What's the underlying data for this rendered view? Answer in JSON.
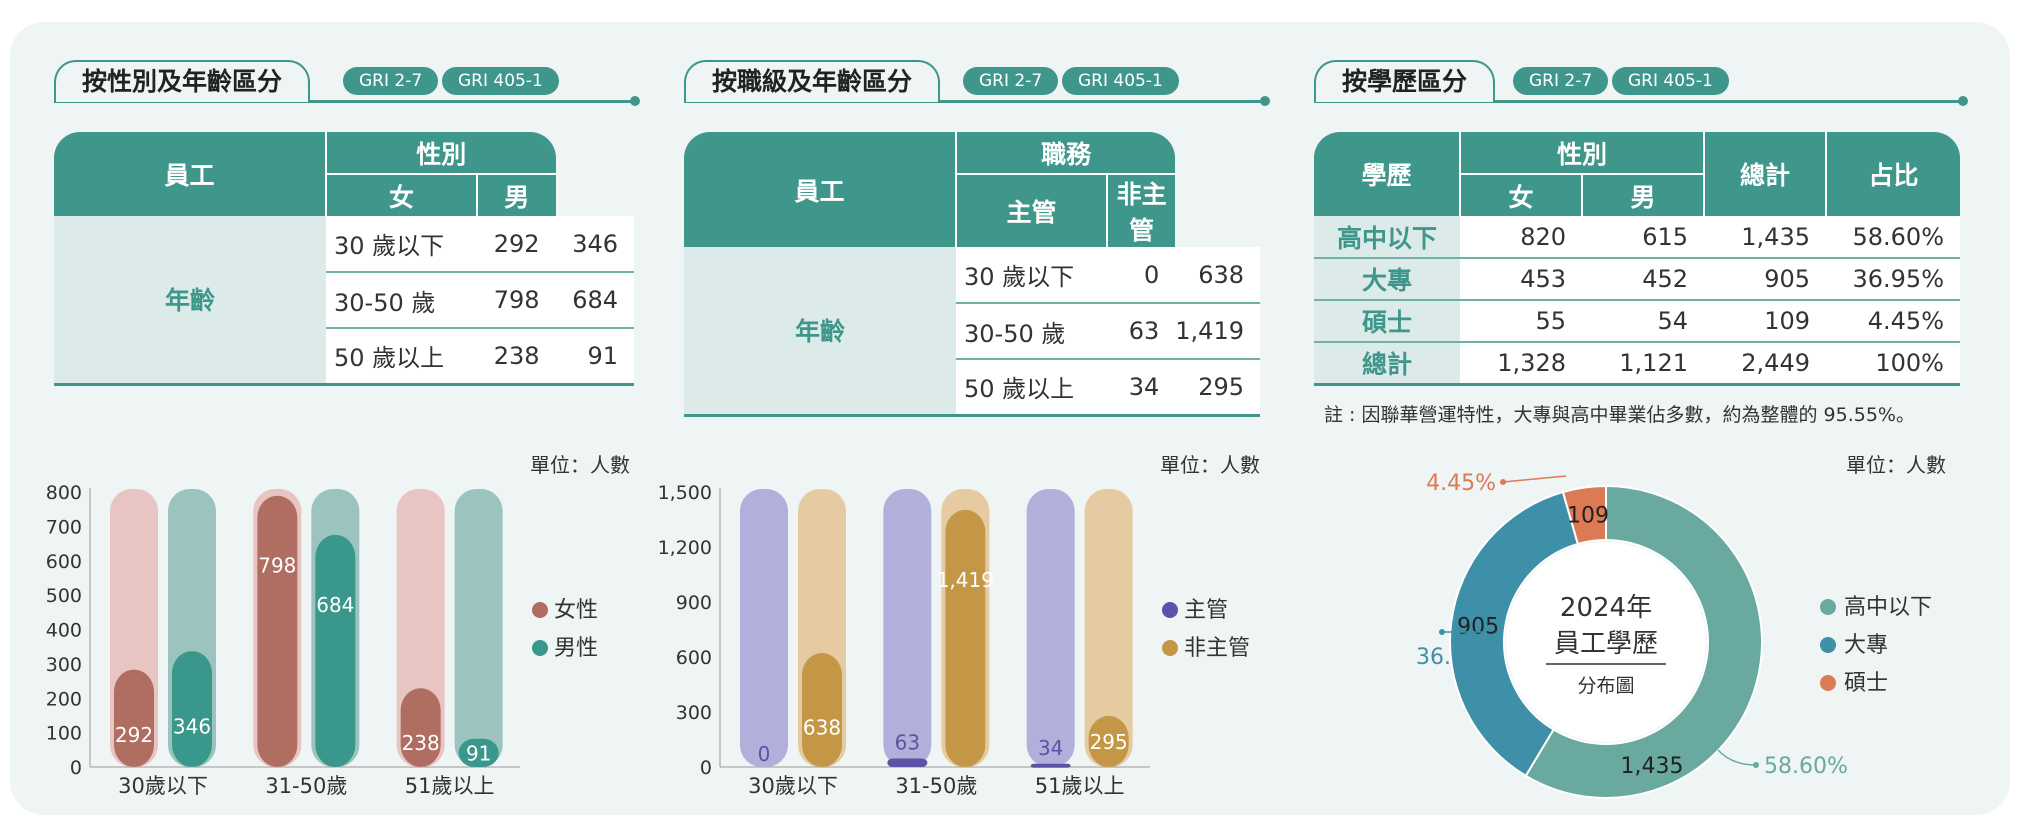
{
  "panels": {
    "p1": {
      "title": "按性別及年齡區分",
      "badges": [
        "GRI 2-7",
        "GRI 405-1"
      ],
      "table": {
        "corner": "員工",
        "group_header": "性別",
        "col_headers": [
          "女",
          "男"
        ],
        "row_group": "年齡",
        "rows": [
          {
            "label": "30 歲以下",
            "values": [
              "292",
              "346"
            ]
          },
          {
            "label": "30-50 歲",
            "values": [
              "798",
              "684"
            ]
          },
          {
            "label": "50 歲以上",
            "values": [
              "238",
              "91"
            ]
          }
        ]
      },
      "unit": "單位：人數"
    },
    "p2": {
      "title": "按職級及年齡區分",
      "badges": [
        "GRI 2-7",
        "GRI 405-1"
      ],
      "table": {
        "corner": "員工",
        "group_header": "職務",
        "col_headers": [
          "主管",
          "非主管"
        ],
        "row_group": "年齡",
        "rows": [
          {
            "label": "30 歲以下",
            "values": [
              "0",
              "638"
            ]
          },
          {
            "label": "30-50 歲",
            "values": [
              "63",
              "1,419"
            ]
          },
          {
            "label": "50 歲以上",
            "values": [
              "34",
              "295"
            ]
          }
        ]
      },
      "unit": "單位：人數"
    },
    "p3": {
      "title": "按學歷區分",
      "badges": [
        "GRI 2-7",
        "GRI 405-1"
      ],
      "table": {
        "corner": "學歷",
        "group_header": "性別",
        "col_headers": [
          "女",
          "男"
        ],
        "total_header": "總計",
        "share_header": "占比",
        "rows": [
          {
            "label": "高中以下",
            "values": [
              "820",
              "615",
              "1,435",
              "58.60%"
            ]
          },
          {
            "label": "大專",
            "values": [
              "453",
              "452",
              "905",
              "36.95%"
            ]
          },
          {
            "label": "碩士",
            "values": [
              "55",
              "54",
              "109",
              "4.45%"
            ]
          },
          {
            "label": "總計",
            "values": [
              "1,328",
              "1,121",
              "2,449",
              "100%"
            ]
          }
        ]
      },
      "note": "註 : 因聯華營運特性，大專與高中畢業佔多數，約為整體的 95.55%。",
      "unit": "單位：人數"
    }
  },
  "colors": {
    "teal": "#3f968b",
    "female": "#b06e63",
    "female_bg": "#e8c4c2",
    "male": "#3a978b",
    "male_bg": "#9cc4be",
    "manager": "#5b54a6",
    "manager_bg": "#b0b0da",
    "staff": "#c49746",
    "staff_bg": "#e6cba2",
    "donut": [
      "#6aa99f",
      "#3e8fa8",
      "#dc7a55"
    ]
  },
  "chart_data": [
    {
      "type": "bar",
      "categories": [
        "30歲以下",
        "31-50歲",
        "51歲以上"
      ],
      "series": [
        {
          "name": "女性",
          "values": [
            292,
            798,
            238
          ]
        },
        {
          "name": "男性",
          "values": [
            346,
            684,
            91
          ]
        }
      ],
      "ylim": [
        0,
        800
      ],
      "yticks": [
        0,
        100,
        200,
        300,
        400,
        500,
        600,
        700,
        800
      ],
      "ytick_labels": [
        "0",
        "100",
        "200",
        "300",
        "400",
        "500",
        "600",
        "700",
        "800"
      ],
      "legend": "right"
    },
    {
      "type": "bar",
      "categories": [
        "30歲以下",
        "31-50歲",
        "51歲以上"
      ],
      "series": [
        {
          "name": "主管",
          "values": [
            0,
            63,
            34
          ]
        },
        {
          "name": "非主管",
          "values": [
            638,
            1419,
            295
          ]
        }
      ],
      "data_labels": [
        [
          "0",
          "63",
          "34"
        ],
        [
          "638",
          "1,419",
          "295"
        ]
      ],
      "ylim": [
        0,
        1500
      ],
      "yticks": [
        0,
        300,
        600,
        900,
        1200,
        1500
      ],
      "ytick_labels": [
        "0",
        "300",
        "600",
        "900",
        "1,200",
        "1,500"
      ],
      "legend": "right"
    },
    {
      "type": "pie",
      "donut": true,
      "center_title": [
        "2024年",
        "員工學歷"
      ],
      "center_subtitle": "分布圖",
      "labels": [
        "高中以下",
        "大專",
        "碩士"
      ],
      "values": [
        1435,
        905,
        109
      ],
      "value_labels": [
        "1,435",
        "905",
        "109"
      ],
      "percent_labels": [
        "58.60%",
        "36.95%",
        "4.45%"
      ],
      "legend": "right"
    }
  ]
}
